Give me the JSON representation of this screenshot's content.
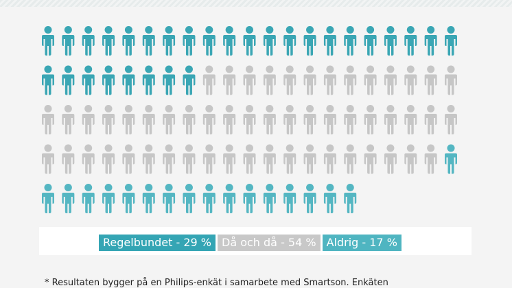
{
  "chart_data": {
    "type": "pictogram",
    "total_icons": 100,
    "icons_per_row": 21,
    "categories": [
      {
        "name": "Regelbundet",
        "value": 29,
        "unit": "%",
        "color": "#3aa6b4"
      },
      {
        "name": "Då och då",
        "value": 54,
        "unit": "%",
        "color": "#c6c6c6"
      },
      {
        "name": "Aldrig",
        "value": 17,
        "unit": "%",
        "color": "#54b6c2"
      }
    ],
    "legend": [
      {
        "label": "Regelbundet - 29 %",
        "color": "#34a5b4"
      },
      {
        "label": "Då och då - 54 %",
        "color": "#c8c8c8"
      },
      {
        "label": "Aldrig - 17 %",
        "color": "#4fb5c1"
      }
    ]
  },
  "footnote": "* Resultaten bygger på en Philips-enkät i samarbete med Smartson. Enkäten"
}
